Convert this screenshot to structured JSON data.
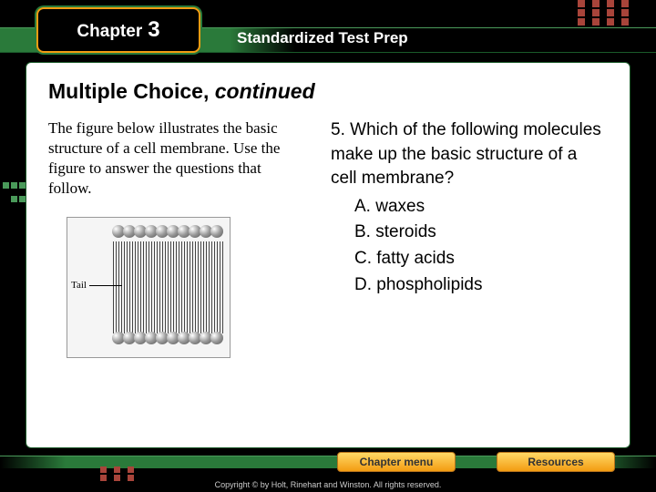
{
  "header": {
    "chapter_label": "Chapter",
    "chapter_number": "3",
    "section_title": "Standardized Test Prep"
  },
  "page": {
    "heading_main": "Multiple Choice,",
    "heading_suffix": "continued"
  },
  "instruction": "The figure below illustrates the basic structure of a cell membrane. Use the figure to answer the questions that follow.",
  "figure": {
    "label": "Tail"
  },
  "question": {
    "number": "5.",
    "stem": "Which of the following molecules make up the basic structure of a cell membrane?",
    "options": [
      {
        "letter": "A.",
        "text": "waxes"
      },
      {
        "letter": "B.",
        "text": "steroids"
      },
      {
        "letter": "C.",
        "text": "fatty acids"
      },
      {
        "letter": "D.",
        "text": "phospholipids"
      }
    ]
  },
  "buttons": {
    "chapter_menu": "Chapter menu",
    "resources": "Resources"
  },
  "footer": {
    "copyright": "Copyright © by Holt, Rinehart and Winston. All rights reserved."
  },
  "colors": {
    "accent_orange": "#f39c12",
    "accent_green": "#2a7a3a",
    "deco_brick": "#a8443a",
    "background": "#000000",
    "panel": "#ffffff"
  }
}
